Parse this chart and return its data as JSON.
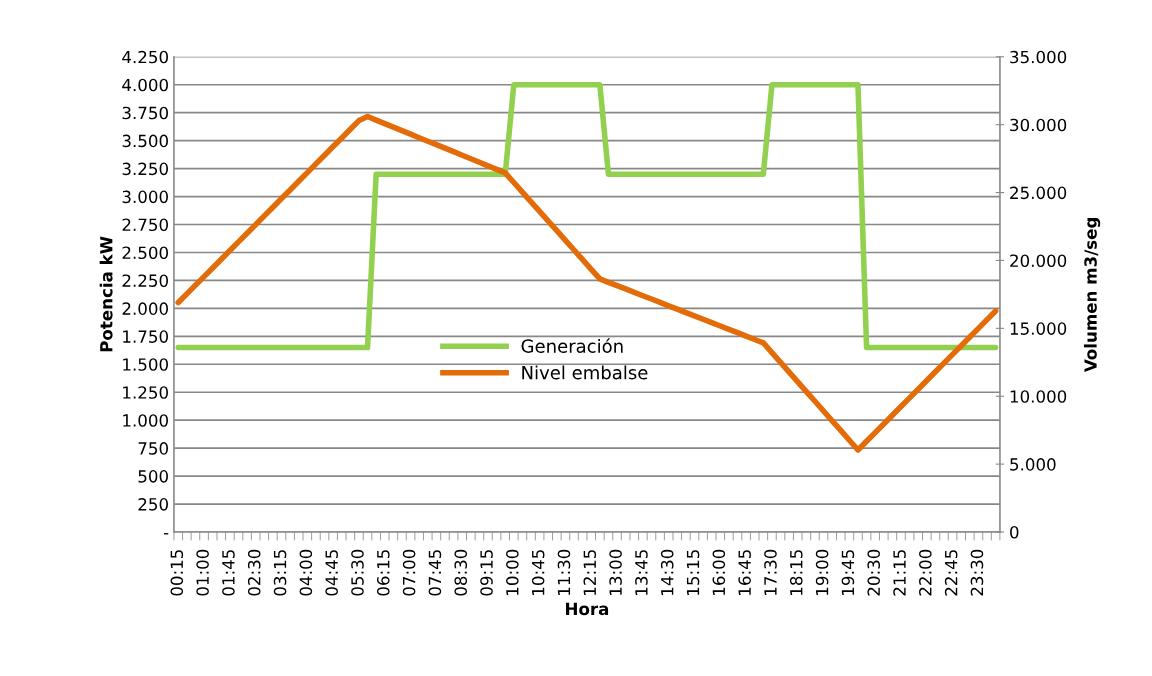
{
  "chart_data": {
    "type": "line",
    "xlabel": "Hora",
    "ylabel": "Potencia kW",
    "y2label": "Volumen m3/seg",
    "categories": [
      "00:15",
      null,
      null,
      "01:00",
      null,
      null,
      "01:45",
      null,
      null,
      "02:30",
      null,
      null,
      "03:15",
      null,
      null,
      "04:00",
      null,
      null,
      "04:45",
      null,
      null,
      "05:30",
      null,
      null,
      "06:15",
      null,
      null,
      "07:00",
      null,
      null,
      "07:45",
      null,
      null,
      "08:30",
      null,
      null,
      "09:15",
      null,
      null,
      "10:00",
      null,
      null,
      "10:45",
      null,
      null,
      "11:30",
      null,
      null,
      "12:15",
      null,
      null,
      "13:00",
      null,
      null,
      "13:45",
      null,
      null,
      "14:30",
      null,
      null,
      "15:15",
      null,
      null,
      "16:00",
      null,
      null,
      "16:45",
      null,
      null,
      "17:30",
      null,
      null,
      "18:15",
      null,
      null,
      "19:00",
      null,
      null,
      "19:45",
      null,
      null,
      "20:30",
      null,
      null,
      "21:15",
      null,
      null,
      "22:00",
      null,
      null,
      "22:45",
      null,
      null,
      "23:30",
      null,
      null
    ],
    "series": [
      {
        "name": "Generación",
        "color": "#92d050",
        "values": [
          1650,
          1650,
          1650,
          1650,
          1650,
          1650,
          1650,
          1650,
          1650,
          1650,
          1650,
          1650,
          1650,
          1650,
          1650,
          1650,
          1650,
          1650,
          1650,
          1650,
          1650,
          1650,
          1650,
          3200,
          3200,
          3200,
          3200,
          3200,
          3200,
          3200,
          3200,
          3200,
          3200,
          3200,
          3200,
          3200,
          3200,
          3200,
          3200,
          4000,
          4000,
          4000,
          4000,
          4000,
          4000,
          4000,
          4000,
          4000,
          4000,
          4000,
          3200,
          3200,
          3200,
          3200,
          3200,
          3200,
          3200,
          3200,
          3200,
          3200,
          3200,
          3200,
          3200,
          3200,
          3200,
          3200,
          3200,
          3200,
          3200,
          4000,
          4000,
          4000,
          4000,
          4000,
          4000,
          4000,
          4000,
          4000,
          4000,
          4000,
          1650,
          1650,
          1650,
          1650,
          1650,
          1650,
          1650,
          1650,
          1650,
          1650,
          1650,
          1650,
          1650,
          1650,
          1650,
          1650
        ]
      },
      {
        "name": "Nivel embalse",
        "color": "#e36c09",
        "axis": "y2",
        "values": [
          16900,
          17540,
          18180,
          18810,
          19450,
          20090,
          20730,
          21370,
          22000,
          22640,
          23280,
          23920,
          24560,
          25190,
          25830,
          26470,
          27110,
          27750,
          28390,
          29020,
          29660,
          30300,
          30600,
          30340,
          30080,
          29820,
          29560,
          29300,
          29040,
          28780,
          28530,
          28270,
          28010,
          27750,
          27490,
          27230,
          26970,
          26710,
          26450,
          25740,
          25030,
          24320,
          23610,
          22900,
          22190,
          21480,
          20770,
          20060,
          19350,
          18640,
          18390,
          18140,
          17900,
          17650,
          17400,
          17160,
          16910,
          16660,
          16410,
          16160,
          15920,
          15670,
          15420,
          15170,
          14930,
          14680,
          14430,
          14180,
          13930,
          13210,
          12500,
          11780,
          11060,
          10340,
          9630,
          8910,
          8190,
          7480,
          6760,
          6040,
          6680,
          7320,
          7960,
          8600,
          9240,
          9880,
          10520,
          11160,
          11800,
          12440,
          13080,
          13720,
          14360,
          15000,
          15640,
          16280
        ]
      }
    ],
    "ylim": [
      0,
      4250
    ],
    "yticks": [
      {
        "value": 0,
        "label": "-"
      },
      {
        "value": 250,
        "label": "250"
      },
      {
        "value": 500,
        "label": "500"
      },
      {
        "value": 750,
        "label": "750"
      },
      {
        "value": 1000,
        "label": "1.000"
      },
      {
        "value": 1250,
        "label": "1.250"
      },
      {
        "value": 1500,
        "label": "1.500"
      },
      {
        "value": 1750,
        "label": "1.750"
      },
      {
        "value": 2000,
        "label": "2.000"
      },
      {
        "value": 2250,
        "label": "2.250"
      },
      {
        "value": 2500,
        "label": "2.500"
      },
      {
        "value": 2750,
        "label": "2.750"
      },
      {
        "value": 3000,
        "label": "3.000"
      },
      {
        "value": 3250,
        "label": "3.250"
      },
      {
        "value": 3500,
        "label": "3.500"
      },
      {
        "value": 3750,
        "label": "3.750"
      },
      {
        "value": 4000,
        "label": "4.000"
      },
      {
        "value": 4250,
        "label": "4.250"
      }
    ],
    "y2lim": [
      0,
      35000
    ],
    "y2ticks": [
      0,
      {
        "value": 5000,
        "label": "5.000"
      },
      {
        "value": 10000,
        "label": "10.000"
      },
      {
        "value": 15000,
        "label": "15.000"
      },
      {
        "value": 20000,
        "label": "20.000"
      },
      {
        "value": 25000,
        "label": "25.000"
      },
      {
        "value": 30000,
        "label": "30.000"
      },
      {
        "value": 35000,
        "label": "35.000"
      }
    ],
    "grid": "y",
    "legend": "center",
    "marker": "none",
    "line_style": "solid"
  }
}
